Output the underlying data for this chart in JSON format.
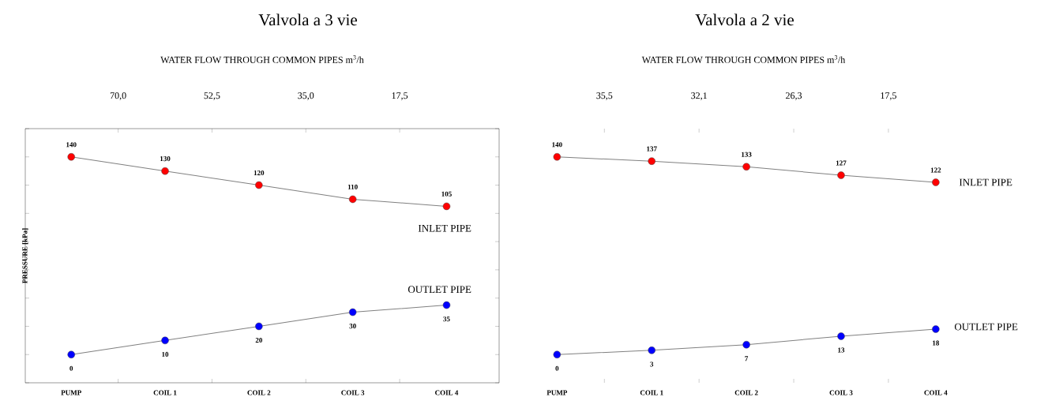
{
  "chart_data": [
    {
      "type": "line",
      "title": "Valvola a 3 vie",
      "ylabel": "PRESSURE [kPa]",
      "x2label": "WATER FLOW THROUGH COMMON PIPES   m$^{3}$/h",
      "annotations": [
        "70,0",
        "52,5",
        "35,0",
        "17,5"
      ],
      "categories": [
        "PUMP",
        "COIL 1",
        "COIL 2",
        "COIL 3",
        "COIL 4"
      ],
      "ylim": [
        -20,
        160
      ],
      "yticks": [
        {
          "value": -20,
          "label": null
        },
        {
          "value": 0,
          "label": null
        },
        {
          "value": 20,
          "label": null
        },
        {
          "value": 40,
          "label": null
        },
        {
          "value": 60,
          "label": null
        },
        {
          "value": 80,
          "label": null
        },
        {
          "value": 100,
          "label": null
        },
        {
          "value": 120,
          "label": null
        },
        {
          "value": 140,
          "label": null
        },
        {
          "value": 160,
          "label": null
        }
      ],
      "tick_labels": "x",
      "marker": "circle",
      "data_labels": true,
      "series": [
        {
          "name": "INLET PIPE",
          "color": "#ff0000",
          "values": [
            140,
            130,
            120,
            110,
            105
          ]
        },
        {
          "name": "OUTLET PIPE",
          "color": "#0000ff",
          "values": [
            0,
            10,
            20,
            30,
            35
          ]
        }
      ]
    },
    {
      "type": "line",
      "title": "Valvola a 2 vie",
      "x2label": "WATER FLOW THROUGH COMMON PIPES   m$^{3}$/h",
      "annotations": [
        "35,5",
        "32,1",
        "26,3",
        "17,5"
      ],
      "categories": [
        "PUMP",
        "COIL 1",
        "COIL 2",
        "COIL 3",
        "COIL 4"
      ],
      "tick_labels": "x",
      "marker": "circle",
      "data_labels": true,
      "series": [
        {
          "name": "INLET PIPE",
          "color": "#ff0000",
          "values": [
            140,
            137,
            133,
            127,
            122
          ]
        },
        {
          "name": "OUTLET PIPE",
          "color": "#0000ff",
          "values": [
            0,
            3,
            7,
            13,
            18
          ]
        }
      ]
    }
  ]
}
